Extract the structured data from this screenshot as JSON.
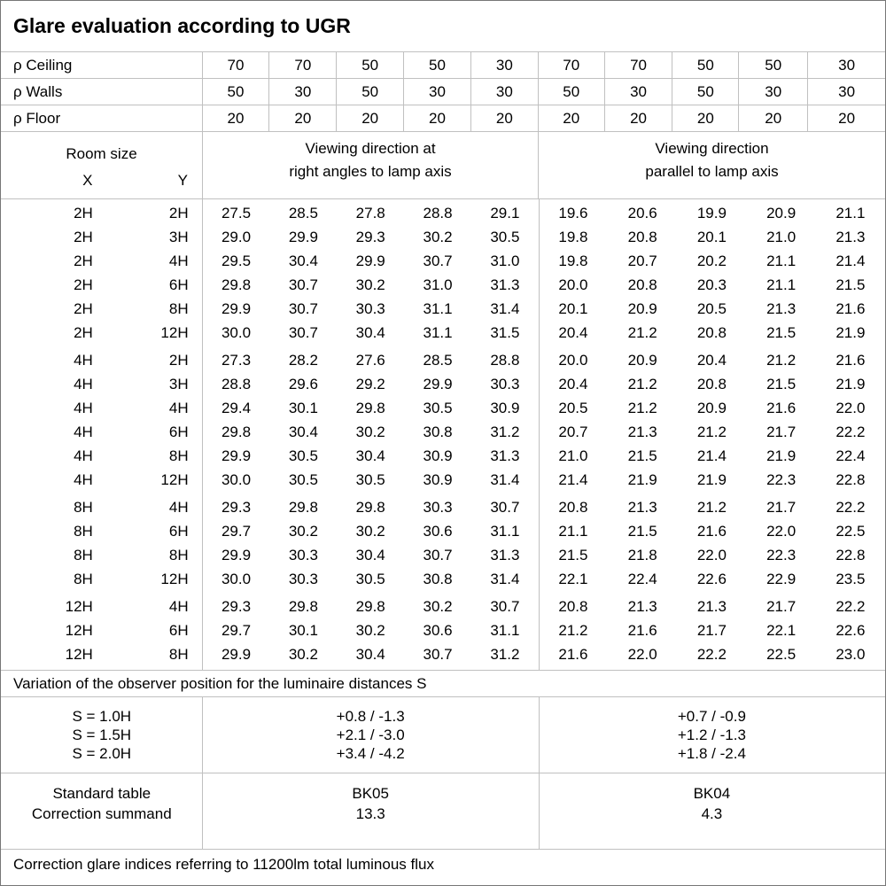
{
  "title": "Glare evaluation according to UGR",
  "colors": {
    "grid_line": "#c0c0c0",
    "outer_border": "#777777",
    "text": "#000000",
    "background": "#ffffff"
  },
  "reflectance_rows": [
    {
      "label": "ρ Ceiling",
      "values": [
        70,
        70,
        50,
        50,
        30,
        70,
        70,
        50,
        50,
        30
      ]
    },
    {
      "label": "ρ Walls",
      "values": [
        50,
        30,
        50,
        30,
        30,
        50,
        30,
        50,
        30,
        30
      ]
    },
    {
      "label": "ρ Floor",
      "values": [
        20,
        20,
        20,
        20,
        20,
        20,
        20,
        20,
        20,
        20
      ]
    }
  ],
  "room_header": {
    "room_size": "Room size",
    "x": "X",
    "y": "Y",
    "group_right_angles": [
      "Viewing direction at",
      "right angles to lamp axis"
    ],
    "group_parallel": [
      "Viewing direction",
      "parallel to lamp axis"
    ]
  },
  "ugr_table": {
    "blocks": [
      {
        "rows": [
          {
            "x": "2H",
            "y": "2H",
            "right_angles": [
              "27.5",
              "28.5",
              "27.8",
              "28.8",
              "29.1"
            ],
            "parallel": [
              "19.6",
              "20.6",
              "19.9",
              "20.9",
              "21.1"
            ]
          },
          {
            "x": "2H",
            "y": "3H",
            "right_angles": [
              "29.0",
              "29.9",
              "29.3",
              "30.2",
              "30.5"
            ],
            "parallel": [
              "19.8",
              "20.8",
              "20.1",
              "21.0",
              "21.3"
            ]
          },
          {
            "x": "2H",
            "y": "4H",
            "right_angles": [
              "29.5",
              "30.4",
              "29.9",
              "30.7",
              "31.0"
            ],
            "parallel": [
              "19.8",
              "20.7",
              "20.2",
              "21.1",
              "21.4"
            ]
          },
          {
            "x": "2H",
            "y": "6H",
            "right_angles": [
              "29.8",
              "30.7",
              "30.2",
              "31.0",
              "31.3"
            ],
            "parallel": [
              "20.0",
              "20.8",
              "20.3",
              "21.1",
              "21.5"
            ]
          },
          {
            "x": "2H",
            "y": "8H",
            "right_angles": [
              "29.9",
              "30.7",
              "30.3",
              "31.1",
              "31.4"
            ],
            "parallel": [
              "20.1",
              "20.9",
              "20.5",
              "21.3",
              "21.6"
            ]
          },
          {
            "x": "2H",
            "y": "12H",
            "right_angles": [
              "30.0",
              "30.7",
              "30.4",
              "31.1",
              "31.5"
            ],
            "parallel": [
              "20.4",
              "21.2",
              "20.8",
              "21.5",
              "21.9"
            ]
          }
        ]
      },
      {
        "rows": [
          {
            "x": "4H",
            "y": "2H",
            "right_angles": [
              "27.3",
              "28.2",
              "27.6",
              "28.5",
              "28.8"
            ],
            "parallel": [
              "20.0",
              "20.9",
              "20.4",
              "21.2",
              "21.6"
            ]
          },
          {
            "x": "4H",
            "y": "3H",
            "right_angles": [
              "28.8",
              "29.6",
              "29.2",
              "29.9",
              "30.3"
            ],
            "parallel": [
              "20.4",
              "21.2",
              "20.8",
              "21.5",
              "21.9"
            ]
          },
          {
            "x": "4H",
            "y": "4H",
            "right_angles": [
              "29.4",
              "30.1",
              "29.8",
              "30.5",
              "30.9"
            ],
            "parallel": [
              "20.5",
              "21.2",
              "20.9",
              "21.6",
              "22.0"
            ]
          },
          {
            "x": "4H",
            "y": "6H",
            "right_angles": [
              "29.8",
              "30.4",
              "30.2",
              "30.8",
              "31.2"
            ],
            "parallel": [
              "20.7",
              "21.3",
              "21.2",
              "21.7",
              "22.2"
            ]
          },
          {
            "x": "4H",
            "y": "8H",
            "right_angles": [
              "29.9",
              "30.5",
              "30.4",
              "30.9",
              "31.3"
            ],
            "parallel": [
              "21.0",
              "21.5",
              "21.4",
              "21.9",
              "22.4"
            ]
          },
          {
            "x": "4H",
            "y": "12H",
            "right_angles": [
              "30.0",
              "30.5",
              "30.5",
              "30.9",
              "31.4"
            ],
            "parallel": [
              "21.4",
              "21.9",
              "21.9",
              "22.3",
              "22.8"
            ]
          }
        ]
      },
      {
        "rows": [
          {
            "x": "8H",
            "y": "4H",
            "right_angles": [
              "29.3",
              "29.8",
              "29.8",
              "30.3",
              "30.7"
            ],
            "parallel": [
              "20.8",
              "21.3",
              "21.2",
              "21.7",
              "22.2"
            ]
          },
          {
            "x": "8H",
            "y": "6H",
            "right_angles": [
              "29.7",
              "30.2",
              "30.2",
              "30.6",
              "31.1"
            ],
            "parallel": [
              "21.1",
              "21.5",
              "21.6",
              "22.0",
              "22.5"
            ]
          },
          {
            "x": "8H",
            "y": "8H",
            "right_angles": [
              "29.9",
              "30.3",
              "30.4",
              "30.7",
              "31.3"
            ],
            "parallel": [
              "21.5",
              "21.8",
              "22.0",
              "22.3",
              "22.8"
            ]
          },
          {
            "x": "8H",
            "y": "12H",
            "right_angles": [
              "30.0",
              "30.3",
              "30.5",
              "30.8",
              "31.4"
            ],
            "parallel": [
              "22.1",
              "22.4",
              "22.6",
              "22.9",
              "23.5"
            ]
          }
        ]
      },
      {
        "rows": [
          {
            "x": "12H",
            "y": "4H",
            "right_angles": [
              "29.3",
              "29.8",
              "29.8",
              "30.2",
              "30.7"
            ],
            "parallel": [
              "20.8",
              "21.3",
              "21.3",
              "21.7",
              "22.2"
            ]
          },
          {
            "x": "12H",
            "y": "6H",
            "right_angles": [
              "29.7",
              "30.1",
              "30.2",
              "30.6",
              "31.1"
            ],
            "parallel": [
              "21.2",
              "21.6",
              "21.7",
              "22.1",
              "22.6"
            ]
          },
          {
            "x": "12H",
            "y": "8H",
            "right_angles": [
              "29.9",
              "30.2",
              "30.4",
              "30.7",
              "31.2"
            ],
            "parallel": [
              "21.6",
              "22.0",
              "22.2",
              "22.5",
              "23.0"
            ]
          }
        ]
      }
    ]
  },
  "variation_note": "Variation of the observer position for the luminaire distances S",
  "s_variation": [
    {
      "label": "S = 1.0H",
      "right_angles": "+0.8 / -1.3",
      "parallel": "+0.7 / -0.9"
    },
    {
      "label": "S = 1.5H",
      "right_angles": "+2.1 / -3.0",
      "parallel": "+1.2 / -1.3"
    },
    {
      "label": "S = 2.0H",
      "right_angles": "+3.4 / -4.2",
      "parallel": "+1.8 / -2.4"
    }
  ],
  "summary": {
    "standard_table_label": "Standard table",
    "correction_summand_label": "Correction summand",
    "right_angles": {
      "standard_table": "BK05",
      "correction_summand": "13.3"
    },
    "parallel": {
      "standard_table": "BK04",
      "correction_summand": "4.3"
    }
  },
  "footer_note": "Correction glare indices referring to 11200lm total luminous flux"
}
